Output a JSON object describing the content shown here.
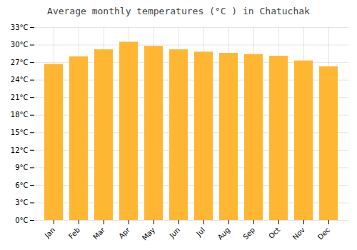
{
  "chart_data": {
    "type": "bar",
    "title": "Average monthly temperatures (°C ) in Chatuchak",
    "categories": [
      "Jan",
      "Feb",
      "Mar",
      "Apr",
      "May",
      "Jun",
      "Jul",
      "Aug",
      "Sep",
      "Oct",
      "Nov",
      "Dec"
    ],
    "values": [
      26.7,
      28.0,
      29.2,
      30.5,
      29.8,
      29.2,
      28.8,
      28.6,
      28.4,
      28.1,
      27.3,
      26.3
    ],
    "color": "#FFB733",
    "ylim": [
      0,
      33
    ],
    "yticks": [
      {
        "value": 0,
        "label": "0°C"
      },
      {
        "value": 3,
        "label": "3°C"
      },
      {
        "value": 6,
        "label": "6°C"
      },
      {
        "value": 9,
        "label": "9°C"
      },
      {
        "value": 12,
        "label": "12°C"
      },
      {
        "value": 15,
        "label": "15°C"
      },
      {
        "value": 18,
        "label": "18°C"
      },
      {
        "value": 21,
        "label": "21°C"
      },
      {
        "value": 24,
        "label": "24°C"
      },
      {
        "value": 27,
        "label": "27°C"
      },
      {
        "value": 30,
        "label": "30°C"
      },
      {
        "value": 33,
        "label": "33°C"
      }
    ],
    "grid": true
  }
}
